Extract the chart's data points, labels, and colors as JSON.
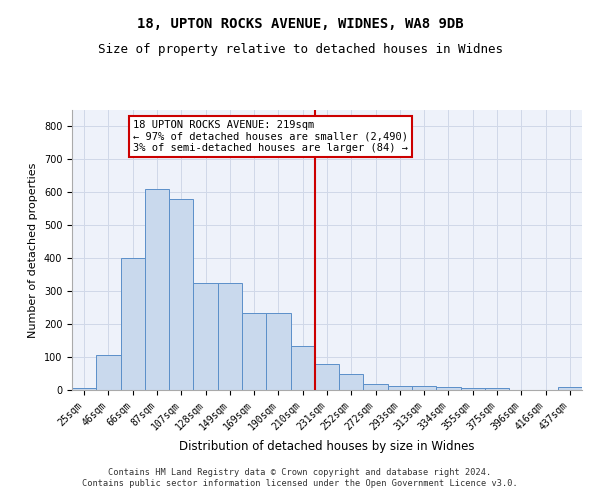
{
  "title1": "18, UPTON ROCKS AVENUE, WIDNES, WA8 9DB",
  "title2": "Size of property relative to detached houses in Widnes",
  "xlabel": "Distribution of detached houses by size in Widnes",
  "ylabel": "Number of detached properties",
  "categories": [
    "25sqm",
    "46sqm",
    "66sqm",
    "87sqm",
    "107sqm",
    "128sqm",
    "149sqm",
    "169sqm",
    "190sqm",
    "210sqm",
    "231sqm",
    "252sqm",
    "272sqm",
    "293sqm",
    "313sqm",
    "334sqm",
    "355sqm",
    "375sqm",
    "396sqm",
    "416sqm",
    "437sqm"
  ],
  "values": [
    5,
    107,
    400,
    610,
    580,
    325,
    325,
    235,
    235,
    135,
    78,
    50,
    18,
    12,
    12,
    10,
    5,
    5,
    0,
    0,
    8
  ],
  "bar_color": "#c9d9ed",
  "bar_edge_color": "#5b8fc9",
  "vline_color": "#cc0000",
  "annotation_text": "18 UPTON ROCKS AVENUE: 219sqm\n← 97% of detached houses are smaller (2,490)\n3% of semi-detached houses are larger (84) →",
  "annotation_box_color": "#cc0000",
  "ylim": [
    0,
    850
  ],
  "yticks": [
    0,
    100,
    200,
    300,
    400,
    500,
    600,
    700,
    800
  ],
  "grid_color": "#d0d8e8",
  "bg_color": "#eef2fa",
  "footer": "Contains HM Land Registry data © Crown copyright and database right 2024.\nContains public sector information licensed under the Open Government Licence v3.0.",
  "title1_fontsize": 10,
  "title2_fontsize": 9,
  "xlabel_fontsize": 8.5,
  "ylabel_fontsize": 8,
  "tick_fontsize": 7,
  "annot_fontsize": 7.5
}
